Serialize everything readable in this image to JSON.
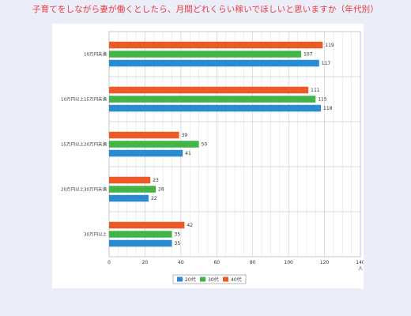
{
  "title": "子育てをしながら妻が働くとしたら、月間どれくらい稼いでほしいと思いますか（年代別）",
  "chart_data": {
    "type": "bar",
    "orientation": "horizontal",
    "categories": [
      "10万円未満",
      "10万円以上15万円未満",
      "15万円以上20万円未満",
      "20万円以上30万円未満",
      "30万円以上"
    ],
    "series": [
      {
        "name": "20代",
        "color": "#2a8bd0",
        "values": [
          117,
          118,
          41,
          22,
          35
        ]
      },
      {
        "name": "30代",
        "color": "#43b547",
        "values": [
          107,
          115,
          50,
          26,
          35
        ]
      },
      {
        "name": "40代",
        "color": "#ec5a28",
        "values": [
          119,
          111,
          39,
          23,
          42
        ]
      }
    ],
    "bar_order_top_to_bottom": [
      "40代",
      "30代",
      "20代"
    ],
    "xlim": [
      0,
      140
    ],
    "xticks": [
      0,
      20,
      40,
      60,
      80,
      100,
      120,
      140
    ],
    "xunit": "人",
    "grid": true,
    "legend_position": "bottom-center",
    "title": "子育てをしながら妻が働くとしたら、月間どれくらい稼いでほしいと思いますか（年代別）"
  }
}
